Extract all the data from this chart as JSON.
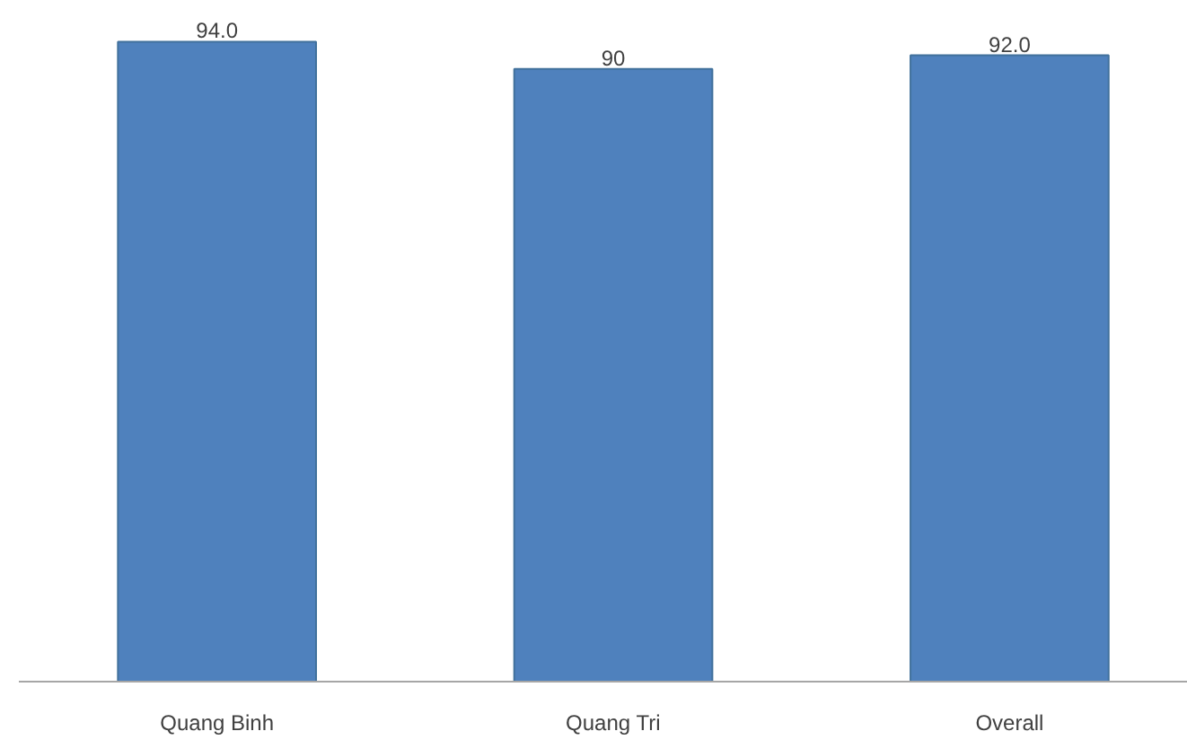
{
  "chart_data": {
    "type": "bar",
    "categories": [
      "Quang Binh",
      "Quang Tri",
      "Overall"
    ],
    "values": [
      94.0,
      90,
      92.0
    ],
    "value_labels": [
      "94.0",
      "90",
      "92.0"
    ],
    "color": "#4f81bd",
    "tick_labels": "x",
    "grid": false
  }
}
